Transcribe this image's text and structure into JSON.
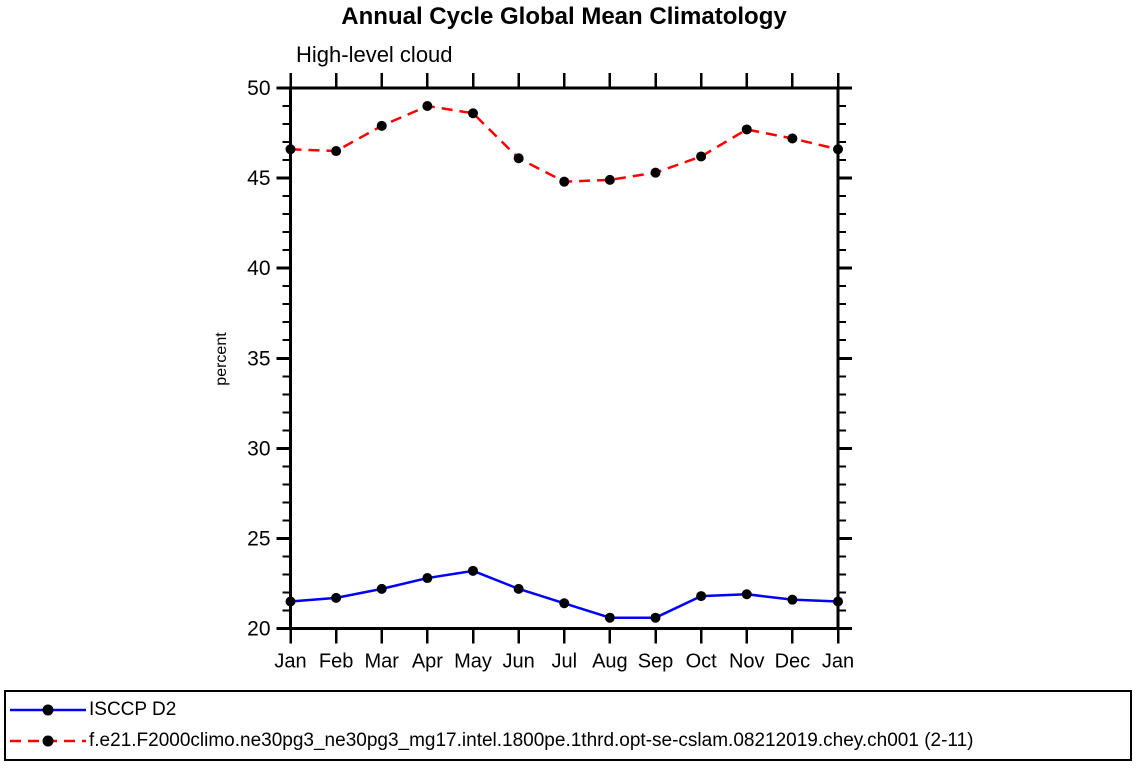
{
  "page": {
    "background": "#ffffff"
  },
  "chart_data": {
    "type": "line",
    "title": "Annual Cycle Global Mean Climatology",
    "subtitle": "High-level cloud",
    "xlabel": "",
    "ylabel": "percent",
    "categories": [
      "Jan",
      "Feb",
      "Mar",
      "Apr",
      "May",
      "Jun",
      "Jul",
      "Aug",
      "Sep",
      "Oct",
      "Nov",
      "Dec",
      "Jan"
    ],
    "ylim": [
      20,
      50
    ],
    "ytick_major": [
      20,
      25,
      30,
      35,
      40,
      45,
      50
    ],
    "ytick_minor_step": 1,
    "grid": false,
    "legend_position": "bottom-outside",
    "axis_color": "#000000",
    "tick_style": "outward-all-sides",
    "series": [
      {
        "name": "ISCCP D2",
        "color": "#0000ff",
        "line_style": "solid",
        "marker": "circle",
        "marker_color": "#000000",
        "values": [
          21.5,
          21.7,
          22.2,
          22.8,
          23.2,
          22.2,
          21.4,
          20.6,
          20.6,
          21.8,
          21.9,
          21.6,
          21.5
        ]
      },
      {
        "name": "f.e21.F2000climo.ne30pg3_ne30pg3_mg17.intel.1800pe.1thrd.opt-se-cslam.08212019.chey.ch001 (2-11)",
        "color": "#ff0000",
        "line_style": "dashed",
        "marker": "circle",
        "marker_color": "#000000",
        "values": [
          46.6,
          46.5,
          47.9,
          49.0,
          48.6,
          46.1,
          44.8,
          44.9,
          45.3,
          46.2,
          47.7,
          47.2,
          46.6
        ]
      }
    ]
  }
}
